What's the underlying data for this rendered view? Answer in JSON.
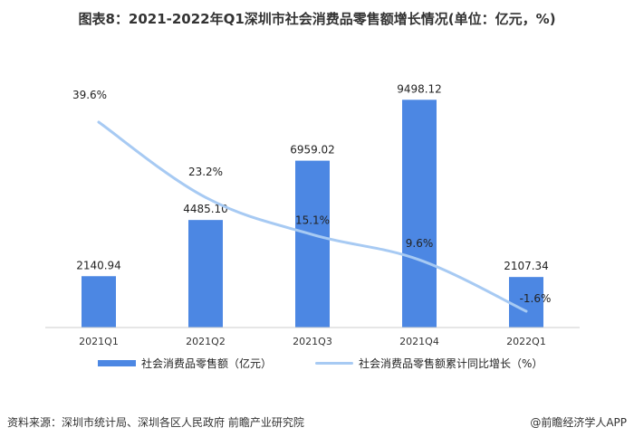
{
  "title": "图表8：2021-2022年Q1深圳市社会消费品零售额增长情况(单位：亿元，%)",
  "footer": {
    "source": "资料来源：深圳市统计局、深圳各区人民政府 前瞻产业研究院",
    "brand": "@前瞻经济学人APP"
  },
  "legend": {
    "bar_label": "社会消费品零售额（亿元）",
    "line_label": "社会消费品零售额累计同比增长（%）"
  },
  "colors": {
    "bar": "#4c87e3",
    "line": "#a7caf3"
  },
  "chart_data": {
    "type": "bar",
    "categories": [
      "2021Q1",
      "2021Q2",
      "2021Q3",
      "2021Q4",
      "2022Q1"
    ],
    "series": [
      {
        "name": "社会消费品零售额（亿元）",
        "type": "bar",
        "values": [
          2140.94,
          4485.1,
          6959.02,
          9498.12,
          2107.34
        ],
        "labels": [
          "2140.94",
          "4485.10",
          "6959.02",
          "9498.12",
          "2107.34"
        ]
      },
      {
        "name": "社会消费品零售额累计同比增长（%）",
        "type": "line",
        "values": [
          39.6,
          23.2,
          15.1,
          9.6,
          -1.6
        ],
        "labels": [
          "39.6%",
          "23.2%",
          "15.1%",
          "9.6%",
          "-1.6%"
        ]
      }
    ],
    "legend_position": "bottom",
    "grid": false
  }
}
